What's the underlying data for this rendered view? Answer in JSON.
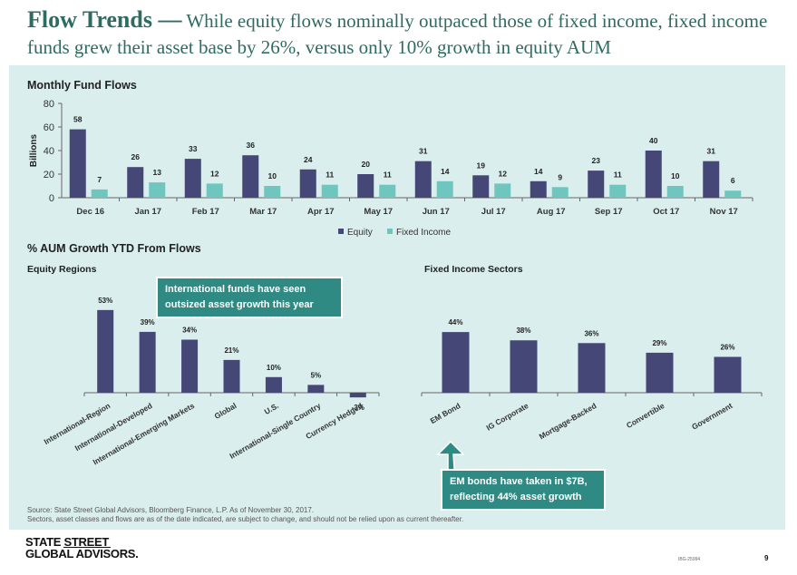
{
  "header": {
    "title_bold": "Flow Trends —",
    "title_rest": " While equity flows nominally outpaced those of fixed income, fixed income funds grew their asset base by 26%, versus only 10% growth in equity AUM"
  },
  "colors": {
    "equity": "#454777",
    "fixed_income": "#6ec6be",
    "accent": "#2e8a82",
    "panel": "#d9eeed"
  },
  "sections": {
    "monthly_title": "Monthly Fund Flows",
    "aum_title": "% AUM Growth YTD From Flows",
    "equity_regions_title": "Equity Regions",
    "fixed_income_title": "Fixed Income Sectors"
  },
  "callouts": {
    "international": "International funds have seen outsized asset growth this year",
    "em_bonds": "EM bonds have taken in $7B, reflecting 44% asset growth"
  },
  "footer": {
    "source_line1": "Source: State Street Global Advisors, Bloomberg Finance, L.P. As of November 30, 2017.",
    "source_line2": "Sectors, asset classes and flows are as of the date indicated, are subject to change, and should not be relied upon as current thereafter.",
    "logo_line1": "STATE STREET",
    "logo_line2": "GLOBAL ADVISORS.",
    "code": "IBG-25994",
    "page_number": "9"
  },
  "chart_data": [
    {
      "type": "bar",
      "title": "Monthly Fund Flows",
      "ylabel": "Billions",
      "ylim": [
        0,
        80
      ],
      "yticks": [
        0,
        20,
        40,
        60,
        80
      ],
      "grid": false,
      "legend_position": "bottom",
      "categories": [
        "Dec 16",
        "Jan 17",
        "Feb 17",
        "Mar 17",
        "Apr 17",
        "May 17",
        "Jun 17",
        "Jul 17",
        "Aug 17",
        "Sep 17",
        "Oct 17",
        "Nov 17"
      ],
      "series": [
        {
          "name": "Equity",
          "color": "#454777",
          "values": [
            58,
            26,
            33,
            36,
            24,
            20,
            31,
            19,
            14,
            23,
            40,
            31
          ]
        },
        {
          "name": "Fixed Income",
          "color": "#6ec6be",
          "values": [
            7,
            13,
            12,
            10,
            11,
            11,
            14,
            12,
            9,
            11,
            10,
            6
          ]
        }
      ]
    },
    {
      "type": "bar",
      "title": "Equity Regions",
      "categories": [
        "International-Region",
        "International-Developed",
        "International-Emerging Markets",
        "Global",
        "U.S.",
        "International-Single Country",
        "Currency Hedged"
      ],
      "values": [
        53,
        39,
        34,
        21,
        10,
        5,
        -3
      ],
      "value_labels": [
        "53%",
        "39%",
        "34%",
        "21%",
        "10%",
        "5%",
        "-3%"
      ],
      "color": "#454777"
    },
    {
      "type": "bar",
      "title": "Fixed Income Sectors",
      "categories": [
        "EM Bond",
        "IG Corporate",
        "Mortgage-Backed",
        "Convertible",
        "Government"
      ],
      "values": [
        44,
        38,
        36,
        29,
        26
      ],
      "value_labels": [
        "44%",
        "38%",
        "36%",
        "29%",
        "26%"
      ],
      "color": "#454777"
    }
  ]
}
